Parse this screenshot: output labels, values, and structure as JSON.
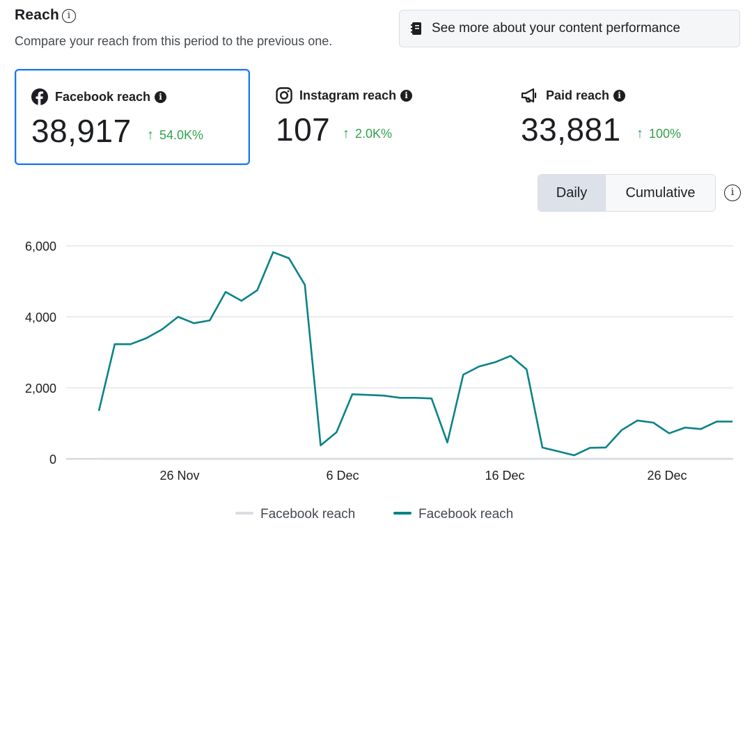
{
  "header": {
    "title": "Reach",
    "info_icon": "i",
    "subtitle": "Compare your reach from this period to the previous one.",
    "perf_button": "See more about your content performance"
  },
  "metrics": [
    {
      "label": "Facebook reach",
      "value": "38,917",
      "change": "54.0K%",
      "icon": "facebook-icon",
      "selected": true
    },
    {
      "label": "Instagram reach",
      "value": "107",
      "change": "2.0K%",
      "icon": "instagram-icon",
      "selected": false
    },
    {
      "label": "Paid reach",
      "value": "33,881",
      "change": "100%",
      "icon": "megaphone-icon",
      "selected": false
    }
  ],
  "toggle": {
    "daily": "Daily",
    "cumulative": "Cumulative",
    "active": "Daily"
  },
  "colors": {
    "current": "#0a8288",
    "previous": "#dadde1",
    "positive": "#31a24c",
    "selected_border": "#1877f2"
  },
  "chart_data": {
    "type": "line",
    "y_ticks": [
      "0",
      "2,000",
      "4,000",
      "6,000"
    ],
    "x_ticks": [
      "26 Nov",
      "6 Dec",
      "16 Dec",
      "26 Dec"
    ],
    "ylim": [
      0,
      6000
    ],
    "grid": true,
    "legend_position": "bottom",
    "series": [
      {
        "name": "Facebook reach",
        "values": [
          0,
          0,
          0,
          0,
          0,
          0,
          0,
          0,
          0,
          0,
          0,
          0,
          0,
          0,
          0,
          0,
          0,
          0,
          0,
          0,
          0,
          0,
          0,
          0,
          0,
          0,
          0,
          0,
          0,
          0,
          0,
          0,
          0,
          0,
          0,
          0,
          0,
          0,
          0,
          0,
          0
        ]
      },
      {
        "name": "Facebook reach",
        "values": [
          1350,
          3230,
          3230,
          3400,
          3650,
          4000,
          3820,
          3900,
          4700,
          4450,
          4750,
          5820,
          5650,
          4900,
          380,
          750,
          1820,
          1800,
          1780,
          1720,
          1720,
          1700,
          460,
          2370,
          2600,
          2720,
          2900,
          2520,
          320,
          210,
          100,
          310,
          320,
          810,
          1080,
          1020,
          720,
          880,
          840,
          1050,
          1050
        ]
      }
    ]
  }
}
